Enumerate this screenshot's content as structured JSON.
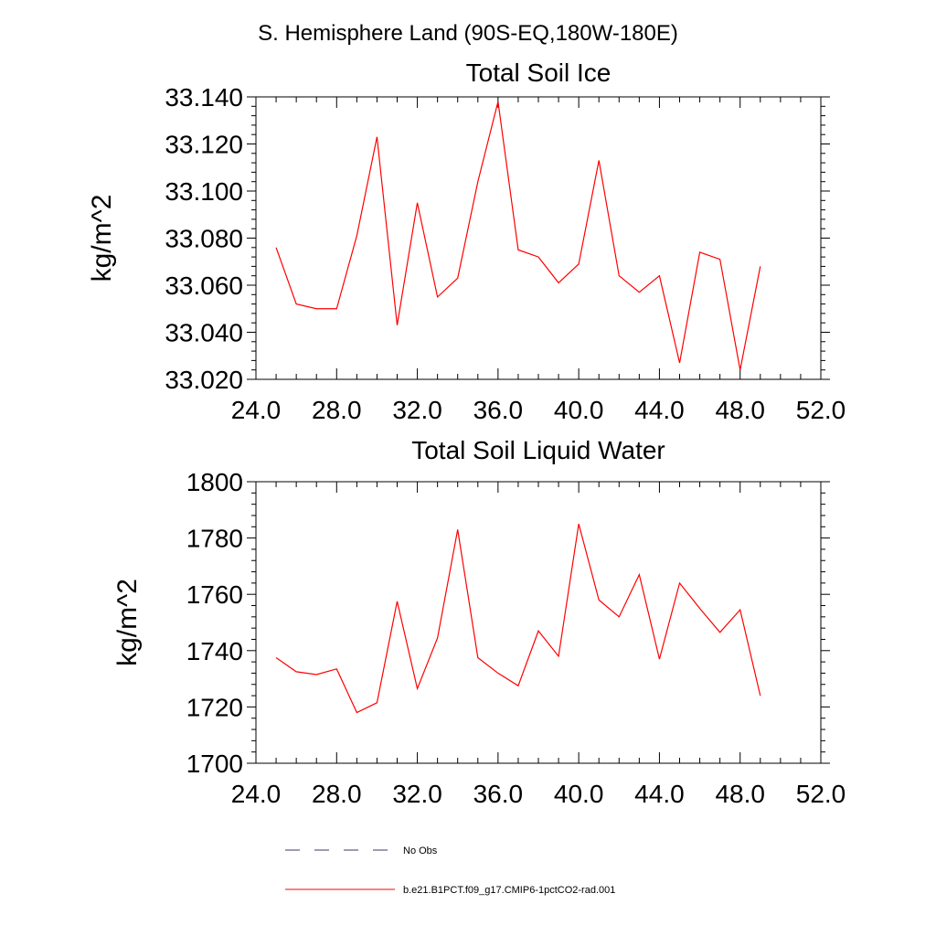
{
  "page_title": "S. Hemisphere Land (90S-EQ,180W-180E)",
  "chart_data": [
    {
      "type": "line",
      "title": "Total Soil Ice",
      "xlabel": "",
      "ylabel": "kg/m^2",
      "xlim": [
        24,
        52
      ],
      "ylim": [
        33.02,
        33.14
      ],
      "xticks": [
        "24.0",
        "28.0",
        "32.0",
        "36.0",
        "40.0",
        "44.0",
        "48.0",
        "52.0"
      ],
      "yticks": [
        "33.020",
        "33.040",
        "33.060",
        "33.080",
        "33.100",
        "33.120",
        "33.140"
      ],
      "grid": false,
      "series": [
        {
          "name": "b.e21.B1PCT.f09_g17.CMIP6-1pctCO2-rad.001",
          "color": "#ff0000",
          "x": [
            25,
            26,
            27,
            28,
            29,
            30,
            31,
            32,
            33,
            34,
            35,
            36,
            37,
            38,
            39,
            40,
            41,
            42,
            43,
            44,
            45,
            46,
            47,
            48,
            49
          ],
          "y": [
            33.076,
            33.052,
            33.05,
            33.05,
            33.081,
            33.123,
            33.043,
            33.095,
            33.055,
            33.063,
            33.104,
            33.138,
            33.075,
            33.072,
            33.061,
            33.069,
            33.113,
            33.064,
            33.057,
            33.064,
            33.027,
            33.074,
            33.071,
            33.024,
            33.068
          ]
        }
      ]
    },
    {
      "type": "line",
      "title": "Total Soil Liquid Water",
      "xlabel": "",
      "ylabel": "kg/m^2",
      "xlim": [
        24,
        52
      ],
      "ylim": [
        1700,
        1800
      ],
      "xticks": [
        "24.0",
        "28.0",
        "32.0",
        "36.0",
        "40.0",
        "44.0",
        "48.0",
        "52.0"
      ],
      "yticks": [
        "1700",
        "1720",
        "1740",
        "1760",
        "1780",
        "1800"
      ],
      "grid": false,
      "series": [
        {
          "name": "b.e21.B1PCT.f09_g17.CMIP6-1pctCO2-rad.001",
          "color": "#ff0000",
          "x": [
            25,
            26,
            27,
            28,
            29,
            30,
            31,
            32,
            33,
            34,
            35,
            36,
            37,
            38,
            39,
            40,
            41,
            42,
            43,
            44,
            45,
            46,
            47,
            48,
            49
          ],
          "y": [
            1737.5,
            1732.5,
            1731.5,
            1733.5,
            1718,
            1721.5,
            1757.5,
            1726.5,
            1744.5,
            1783,
            1737.5,
            1732,
            1727.5,
            1747,
            1738,
            1785,
            1758,
            1752,
            1767,
            1737,
            1764,
            1755,
            1746.5,
            1754.5,
            1724
          ]
        }
      ]
    }
  ],
  "legend": {
    "placement": "bottom",
    "entries": [
      {
        "label": "No Obs",
        "color": "#3a3a6a",
        "style": "dashed"
      },
      {
        "label": "b.e21.B1PCT.f09_g17.CMIP6-1pctCO2-rad.001",
        "color": "#ff0000",
        "style": "solid"
      }
    ]
  }
}
